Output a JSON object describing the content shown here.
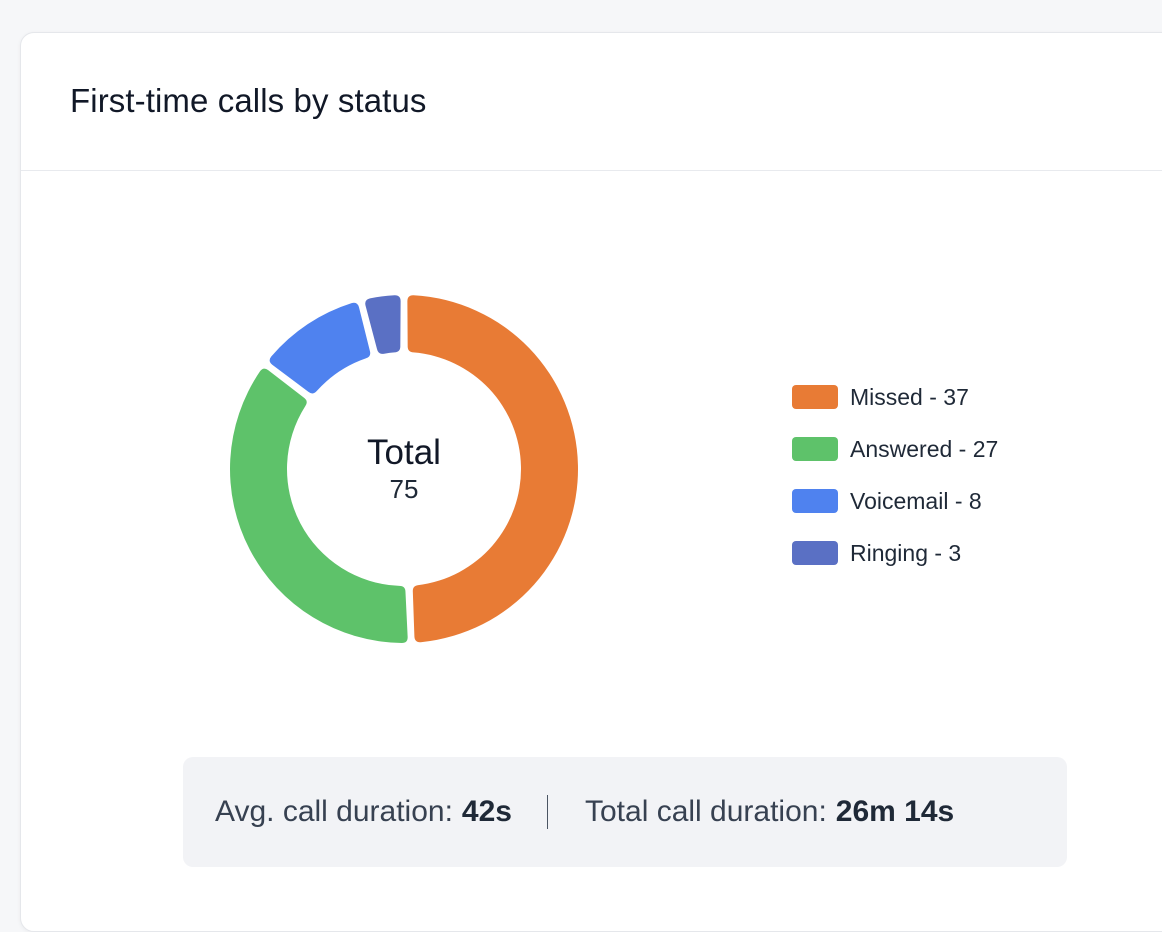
{
  "card": {
    "title": "First-time calls by status"
  },
  "chart_data": {
    "type": "pie",
    "donut": true,
    "center": {
      "title": "Total",
      "value": "75"
    },
    "categories": [
      "Missed",
      "Answered",
      "Voicemail",
      "Ringing"
    ],
    "values": [
      37,
      27,
      8,
      3
    ],
    "colors": [
      "#e87b35",
      "#5ec26a",
      "#4f82ef",
      "#5a70c4"
    ],
    "legend": [
      {
        "label": "Missed - 37",
        "color": "#e87b35"
      },
      {
        "label": "Answered - 27",
        "color": "#5ec26a"
      },
      {
        "label": "Voicemail - 8",
        "color": "#4f82ef"
      },
      {
        "label": "Ringing - 3",
        "color": "#5a70c4"
      }
    ],
    "legend_position": "right"
  },
  "summary": {
    "avg_label": "Avg. call duration:",
    "avg_value": "42s",
    "total_label": "Total call duration:",
    "total_value": "26m 14s"
  }
}
